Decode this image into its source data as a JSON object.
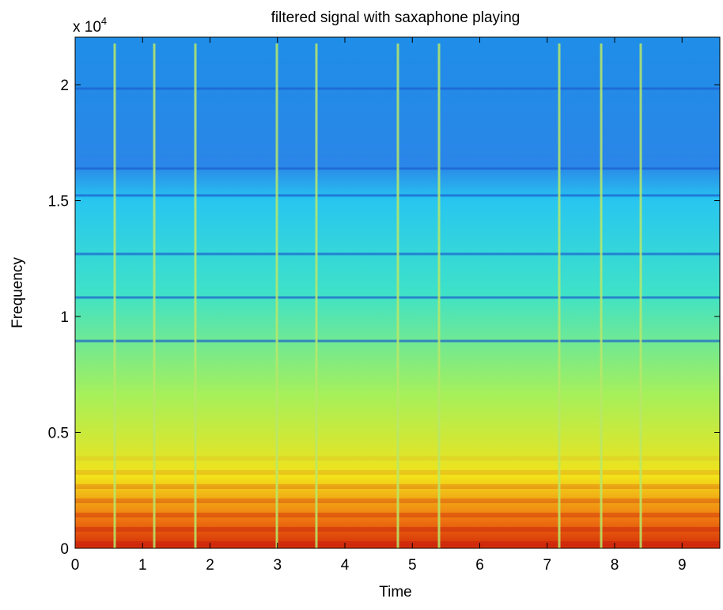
{
  "chart_data": {
    "type": "spectrogram",
    "title": "filtered signal with saxaphone playing",
    "x_label": "Time",
    "y_label": "Frequency",
    "y_multiplier": {
      "base": "x 10",
      "exponent": "4"
    },
    "xlim": [
      0,
      9.56
    ],
    "xticks": [
      0,
      1,
      2,
      3,
      4,
      5,
      6,
      7,
      8,
      9
    ],
    "ylim": [
      0,
      22050
    ],
    "yticks": [
      0,
      {
        "value": 5000,
        "label": "0.5"
      },
      {
        "value": 10000,
        "label": "1"
      },
      {
        "value": 15000,
        "label": "1.5"
      },
      {
        "value": 20000,
        "label": "2"
      }
    ]
  }
}
